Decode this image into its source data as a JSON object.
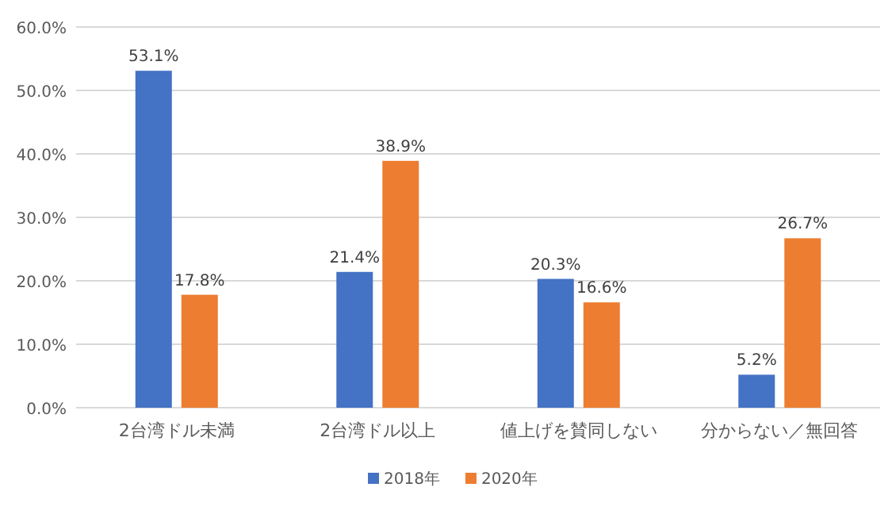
{
  "chart_data": {
    "type": "bar",
    "categories": [
      "2台湾ドル未満",
      "2台湾ドル以上",
      "値上げを賛同しない",
      "分からない／無回答"
    ],
    "series": [
      {
        "name": "2018年",
        "color": "#4472c4",
        "values": [
          53.1,
          21.4,
          20.3,
          5.2
        ],
        "value_labels": [
          "53.1%",
          "21.4%",
          "20.3%",
          "5.2%"
        ]
      },
      {
        "name": "2020年",
        "color": "#ed7d31",
        "values": [
          17.8,
          38.9,
          16.6,
          26.7
        ],
        "value_labels": [
          "17.8%",
          "38.9%",
          "16.6%",
          "26.7%"
        ]
      }
    ],
    "ylim": [
      0,
      60
    ],
    "yticks": [
      {
        "value": 0,
        "label": "0.0%"
      },
      {
        "value": 10,
        "label": "10.0%"
      },
      {
        "value": 20,
        "label": "20.0%"
      },
      {
        "value": 30,
        "label": "30.0%"
      },
      {
        "value": 40,
        "label": "40.0%"
      },
      {
        "value": 50,
        "label": "50.0%"
      },
      {
        "value": 60,
        "label": "60.0%"
      }
    ],
    "grid": "y",
    "legend": "bottom"
  }
}
